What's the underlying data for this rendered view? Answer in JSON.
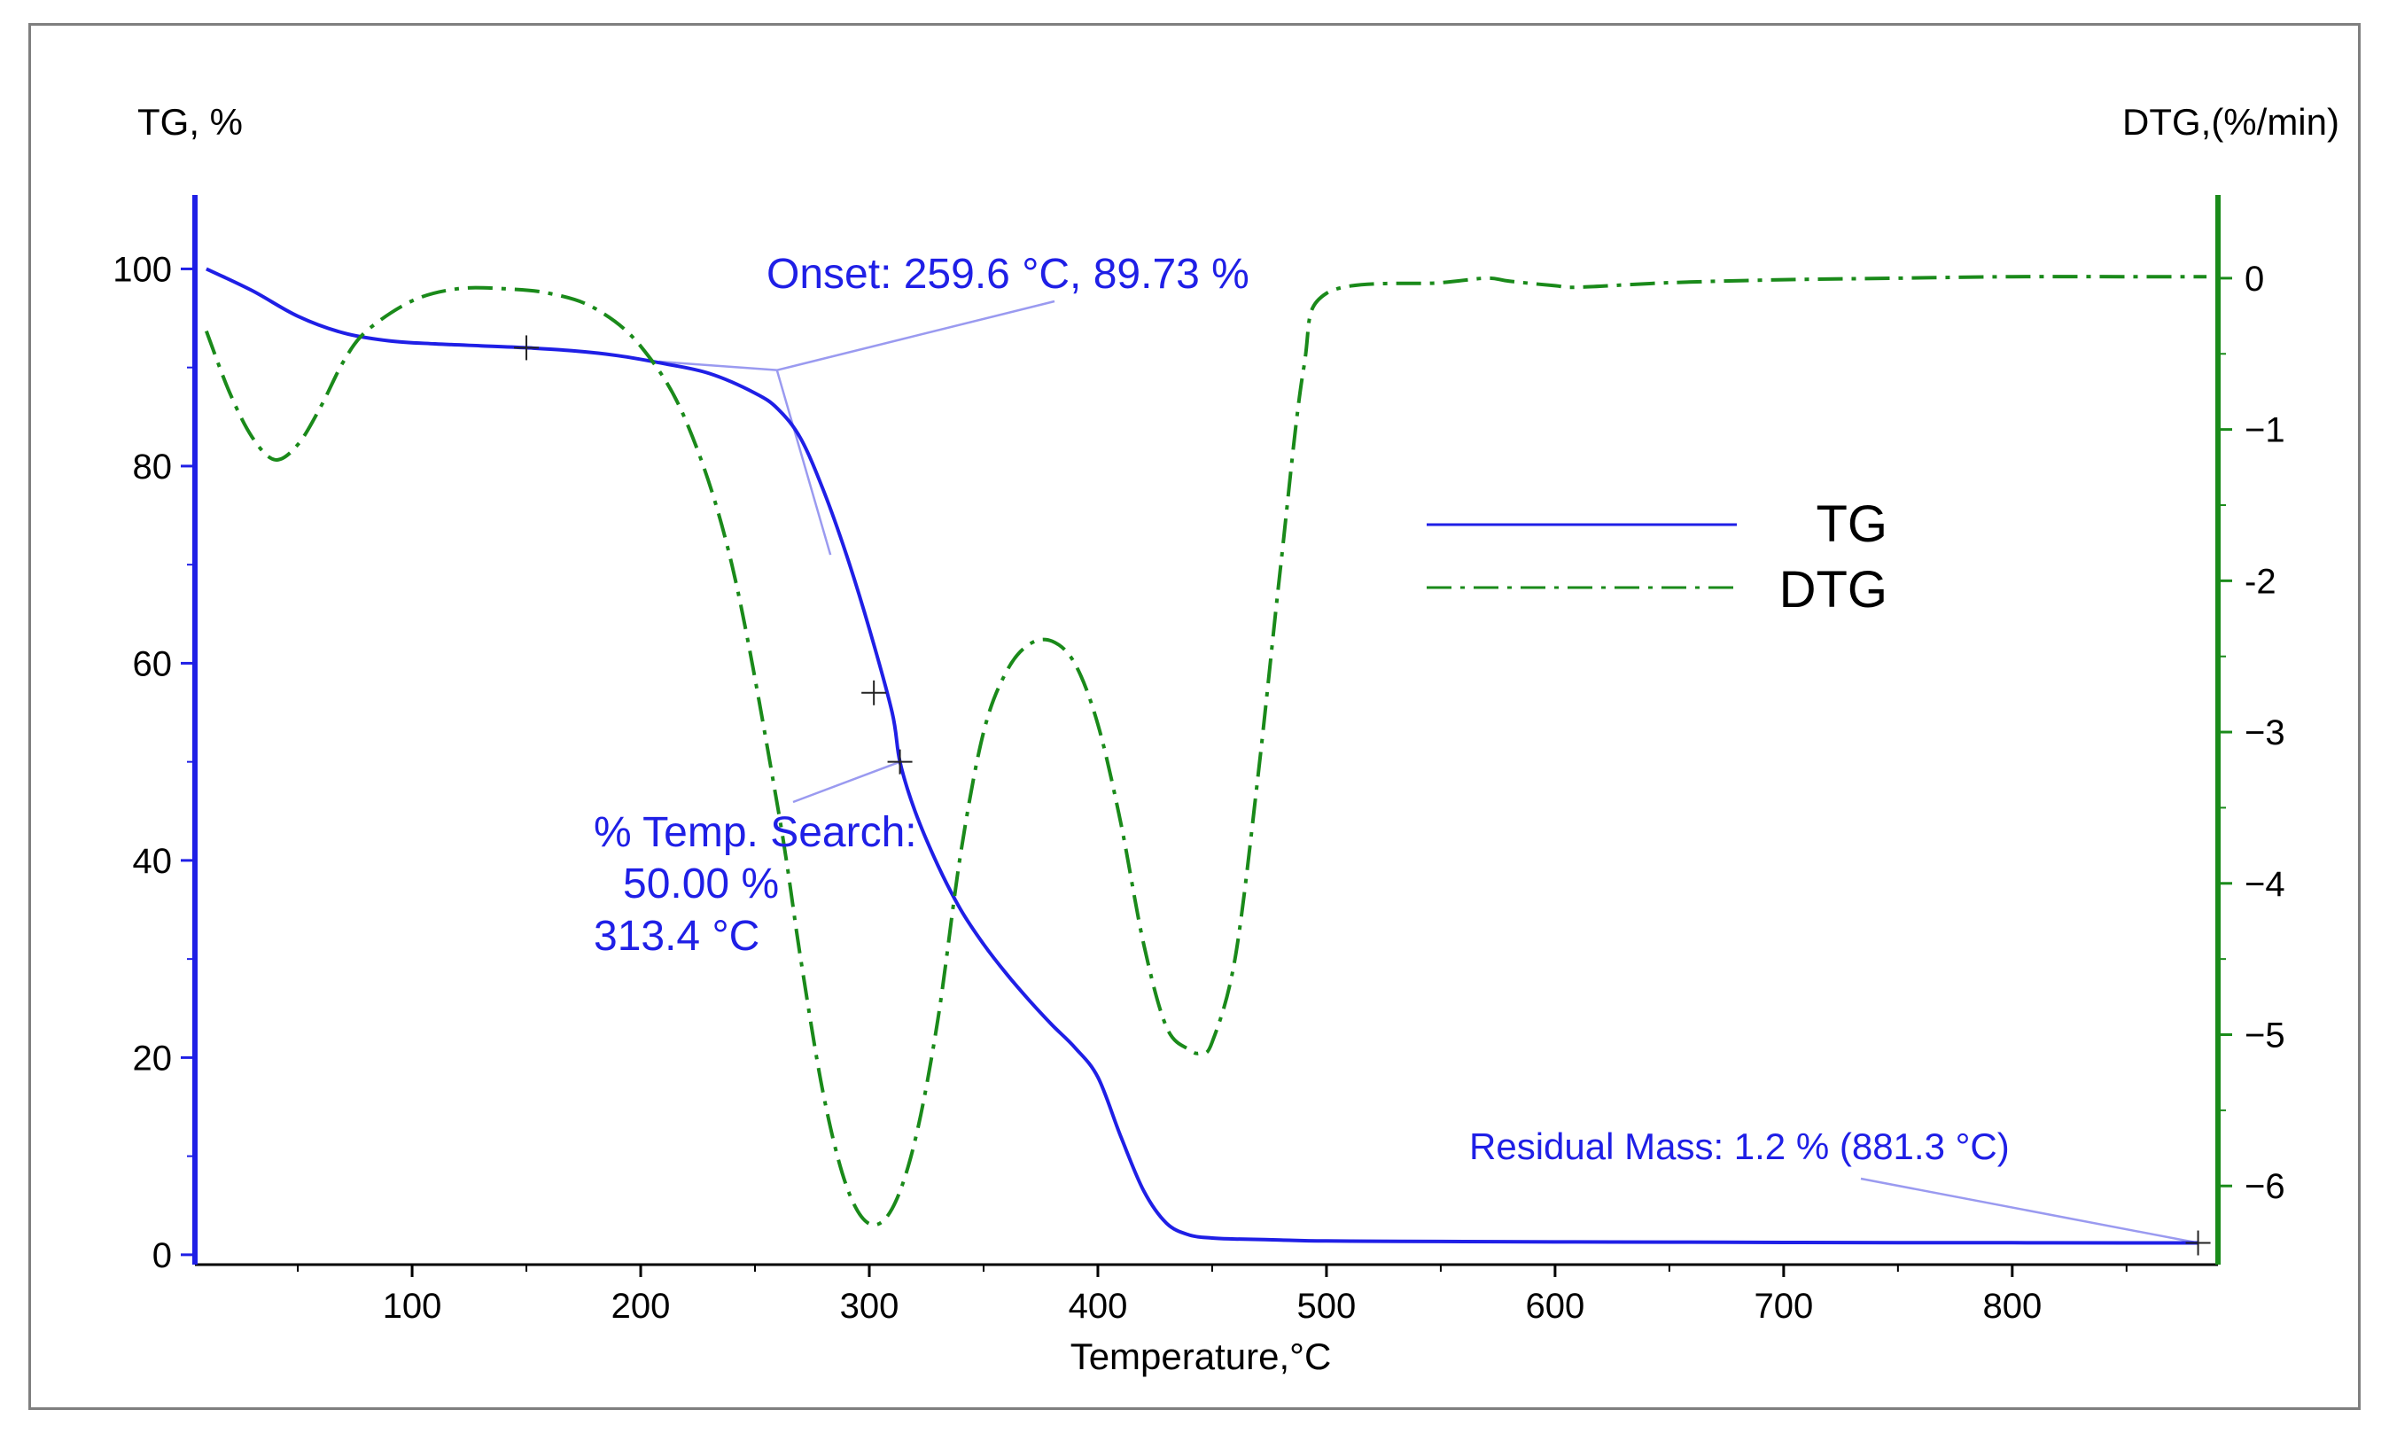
{
  "chart_data": {
    "type": "line",
    "y_left_label": "TG, %",
    "y_right_label": "DTG,(%/min)",
    "xlabel": "Temperature,°C",
    "xlim": [
      5,
      890
    ],
    "ylim_left": [
      -1,
      107.5
    ],
    "ylim_right": [
      -6.52,
      0.55
    ],
    "x_ticks": [
      100,
      200,
      300,
      400,
      500,
      600,
      700,
      800
    ],
    "x_tick_labels": [
      "100",
      "200",
      "300",
      "400",
      "500",
      "600",
      "700",
      "800"
    ],
    "y_left_ticks": [
      0,
      20,
      40,
      60,
      80,
      100
    ],
    "y_left_tick_labels": [
      "0",
      "20",
      "40",
      "60",
      "80",
      "100"
    ],
    "y_right_ticks": [
      0,
      -1,
      -2,
      -3,
      -4,
      -5,
      -6
    ],
    "y_right_tick_labels": [
      "0",
      "−1",
      "-2",
      "−3",
      "−4",
      "−5",
      "−6"
    ],
    "colors": {
      "tg": "#1f1fe6",
      "dtg": "#1a8a1a",
      "left_axis": "#1f1fe6",
      "right_axis": "#1a8a1a",
      "annotation": "#1f1fe6",
      "leader": "#9a9af0"
    },
    "series": [
      {
        "name": "TG",
        "axis": "left",
        "style": "solid",
        "x": [
          10,
          30,
          50,
          70,
          90,
          110,
          130,
          150,
          170,
          190,
          210,
          230,
          250,
          260,
          270,
          280,
          290,
          300,
          310,
          313.4,
          320,
          330,
          340,
          350,
          360,
          370,
          380,
          390,
          400,
          410,
          420,
          430,
          440,
          450,
          460,
          480,
          500,
          550,
          600,
          650,
          700,
          750,
          800,
          850,
          881.3
        ],
        "values": [
          100,
          97.8,
          95.2,
          93.5,
          92.7,
          92.4,
          92.2,
          92.0,
          91.7,
          91.2,
          90.4,
          89.4,
          87.4,
          85.8,
          82.8,
          77.5,
          71,
          63.5,
          55,
          50,
          45,
          39.5,
          35,
          31.5,
          28.5,
          25.8,
          23.3,
          21,
          18,
          12,
          6.5,
          3.2,
          2,
          1.7,
          1.6,
          1.5,
          1.4,
          1.35,
          1.3,
          1.28,
          1.25,
          1.23,
          1.22,
          1.2,
          1.2
        ]
      },
      {
        "name": "DTG",
        "axis": "right",
        "style": "dash-dot",
        "x": [
          10,
          20,
          30,
          40,
          50,
          60,
          70,
          80,
          100,
          120,
          140,
          160,
          180,
          200,
          220,
          240,
          260,
          270,
          280,
          290,
          300,
          310,
          320,
          330,
          340,
          350,
          360,
          370,
          380,
          390,
          400,
          410,
          420,
          430,
          440,
          445,
          450,
          460,
          470,
          480,
          490,
          500,
          550,
          570,
          580,
          600,
          610,
          650,
          700,
          750,
          800,
          850,
          885
        ],
        "values": [
          -0.35,
          -0.75,
          -1.05,
          -1.2,
          -1.1,
          -0.85,
          -0.55,
          -0.35,
          -0.15,
          -0.07,
          -0.07,
          -0.1,
          -0.2,
          -0.45,
          -0.95,
          -1.9,
          -3.5,
          -4.5,
          -5.4,
          -6.0,
          -6.25,
          -6.15,
          -5.7,
          -4.9,
          -3.8,
          -3.0,
          -2.6,
          -2.42,
          -2.4,
          -2.55,
          -2.95,
          -3.6,
          -4.4,
          -4.95,
          -5.1,
          -5.12,
          -5.05,
          -4.5,
          -3.3,
          -1.9,
          -0.6,
          -0.1,
          -0.03,
          0.0,
          -0.02,
          -0.05,
          -0.06,
          -0.03,
          -0.01,
          0.0,
          0.01,
          0.01,
          0.01
        ]
      }
    ],
    "legend": {
      "position": "center-right",
      "entries": [
        "TG",
        "DTG"
      ]
    },
    "markers": [
      {
        "series": "TG",
        "x": 150,
        "y": 92.0
      },
      {
        "series": "TG",
        "x": 302,
        "y": 57
      },
      {
        "series": "TG",
        "x": 313.4,
        "y": 50.0
      },
      {
        "series": "TG",
        "x": 881.3,
        "y": 1.2
      }
    ],
    "onset_tangents": {
      "baseline": {
        "x1": 208,
        "y1": 90.6,
        "x2": 259.6,
        "y2": 89.73
      },
      "steep": {
        "x1": 259.6,
        "y1": 89.73,
        "x2": 283,
        "y2": 71
      }
    },
    "annotations": {
      "onset": {
        "text": "Onset: 259.6 °C, 89.73 %",
        "x": 259.6,
        "y": 89.73
      },
      "temp_search_1": "% Temp. Search:",
      "temp_search_2": "50.00 %",
      "temp_search_3": "313.4 °C",
      "temp_search_point": {
        "x": 313.4,
        "y": 50.0
      },
      "residual": {
        "text": "Residual Mass: 1.2 % (881.3 °C)",
        "x": 881.3,
        "y": 1.2
      }
    }
  }
}
